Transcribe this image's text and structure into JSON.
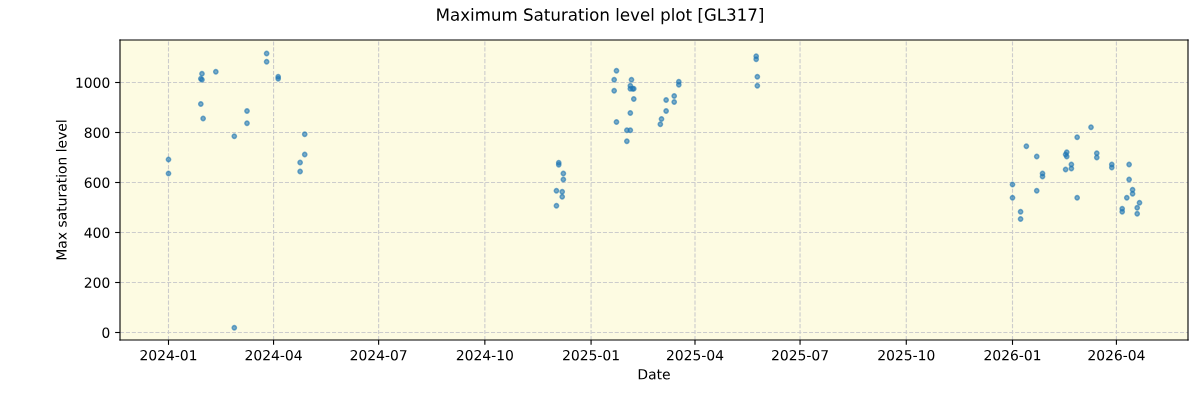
{
  "chart_data": {
    "type": "scatter",
    "title": "Maximum Saturation level plot [GL317]",
    "xlabel": "Date",
    "ylabel": "Max saturation level",
    "x": [
      "2024-01-01",
      "2024-01-01",
      "2024-01-30",
      "2024-01-29",
      "2024-01-30",
      "2024-01-29",
      "2024-01-31",
      "2024-02-11",
      "2024-02-27",
      "2024-02-27",
      "2024-03-09",
      "2024-03-09",
      "2024-03-26",
      "2024-03-26",
      "2024-04-05",
      "2024-04-05",
      "2024-04-28",
      "2024-04-28",
      "2024-04-24",
      "2024-04-24",
      "2024-12-04",
      "2024-12-04",
      "2024-12-08",
      "2024-12-08",
      "2024-12-02",
      "2024-12-07",
      "2024-12-07",
      "2024-12-02",
      "2025-01-23",
      "2025-01-21",
      "2025-01-21",
      "2025-01-23",
      "2025-02-01",
      "2025-02-04",
      "2025-02-01",
      "2025-02-05",
      "2025-02-04",
      "2025-02-04",
      "2025-02-06",
      "2025-02-07",
      "2025-02-07",
      "2025-02-04",
      "2025-03-02",
      "2025-03-03",
      "2025-03-07",
      "2025-03-07",
      "2025-03-14",
      "2025-03-14",
      "2025-03-18",
      "2025-03-18",
      "2025-05-24",
      "2025-05-24",
      "2025-05-25",
      "2025-05-25",
      "2026-01-01",
      "2026-01-01",
      "2026-01-08",
      "2026-01-08",
      "2026-01-13",
      "2026-01-22",
      "2026-01-22",
      "2026-01-27",
      "2026-01-27",
      "2026-02-16",
      "2026-02-17",
      "2026-02-16",
      "2026-02-17",
      "2026-02-21",
      "2026-02-21",
      "2026-02-26",
      "2026-02-26",
      "2026-03-10",
      "2026-03-15",
      "2026-03-15",
      "2026-03-28",
      "2026-03-28",
      "2026-04-12",
      "2026-04-12",
      "2026-04-15",
      "2026-04-15",
      "2026-04-10",
      "2026-04-06",
      "2026-04-06",
      "2026-04-21",
      "2026-04-19",
      "2026-04-19"
    ],
    "series": [
      {
        "color": "#1f77b4",
        "values": [
          692,
          636,
          1035,
          1015,
          1011,
          914,
          856,
          1043,
          785,
          19,
          886,
          837,
          1116,
          1083,
          1023,
          1015,
          793,
          712,
          680,
          644,
          679,
          671,
          636,
          612,
          567,
          563,
          543,
          507,
          1047,
          1011,
          967,
          842,
          809,
          809,
          765,
          1011,
          987,
          975,
          975,
          975,
          934,
          878,
          833,
          854,
          886,
          930,
          946,
          922,
          1003,
          991,
          1105,
          1093,
          1023,
          987,
          592,
          539,
          483,
          454,
          745,
          704,
          567,
          636,
          624,
          652,
          721,
          712,
          704,
          672,
          656,
          781,
          539,
          821,
          717,
          700,
          672,
          660,
          672,
          612,
          571,
          555,
          539,
          495,
          483,
          519,
          499,
          475
        ]
      }
    ],
    "xlim": [
      "2023-11-20",
      "2026-06-02"
    ],
    "xticks": [
      {
        "value": "2024-01-01",
        "label": "2024-01"
      },
      {
        "value": "2024-04-01",
        "label": "2024-04"
      },
      {
        "value": "2024-07-01",
        "label": "2024-07"
      },
      {
        "value": "2024-10-01",
        "label": "2024-10"
      },
      {
        "value": "2025-01-01",
        "label": "2025-01"
      },
      {
        "value": "2025-04-01",
        "label": "2025-04"
      },
      {
        "value": "2025-07-01",
        "label": "2025-07"
      },
      {
        "value": "2025-10-01",
        "label": "2025-10"
      },
      {
        "value": "2026-01-01",
        "label": "2026-01"
      },
      {
        "value": "2026-04-01",
        "label": "2026-04"
      }
    ],
    "ylim": [
      -30,
      1170
    ],
    "yticks": [
      0,
      200,
      400,
      600,
      800,
      1000
    ],
    "grid": true,
    "marker": "circle"
  }
}
